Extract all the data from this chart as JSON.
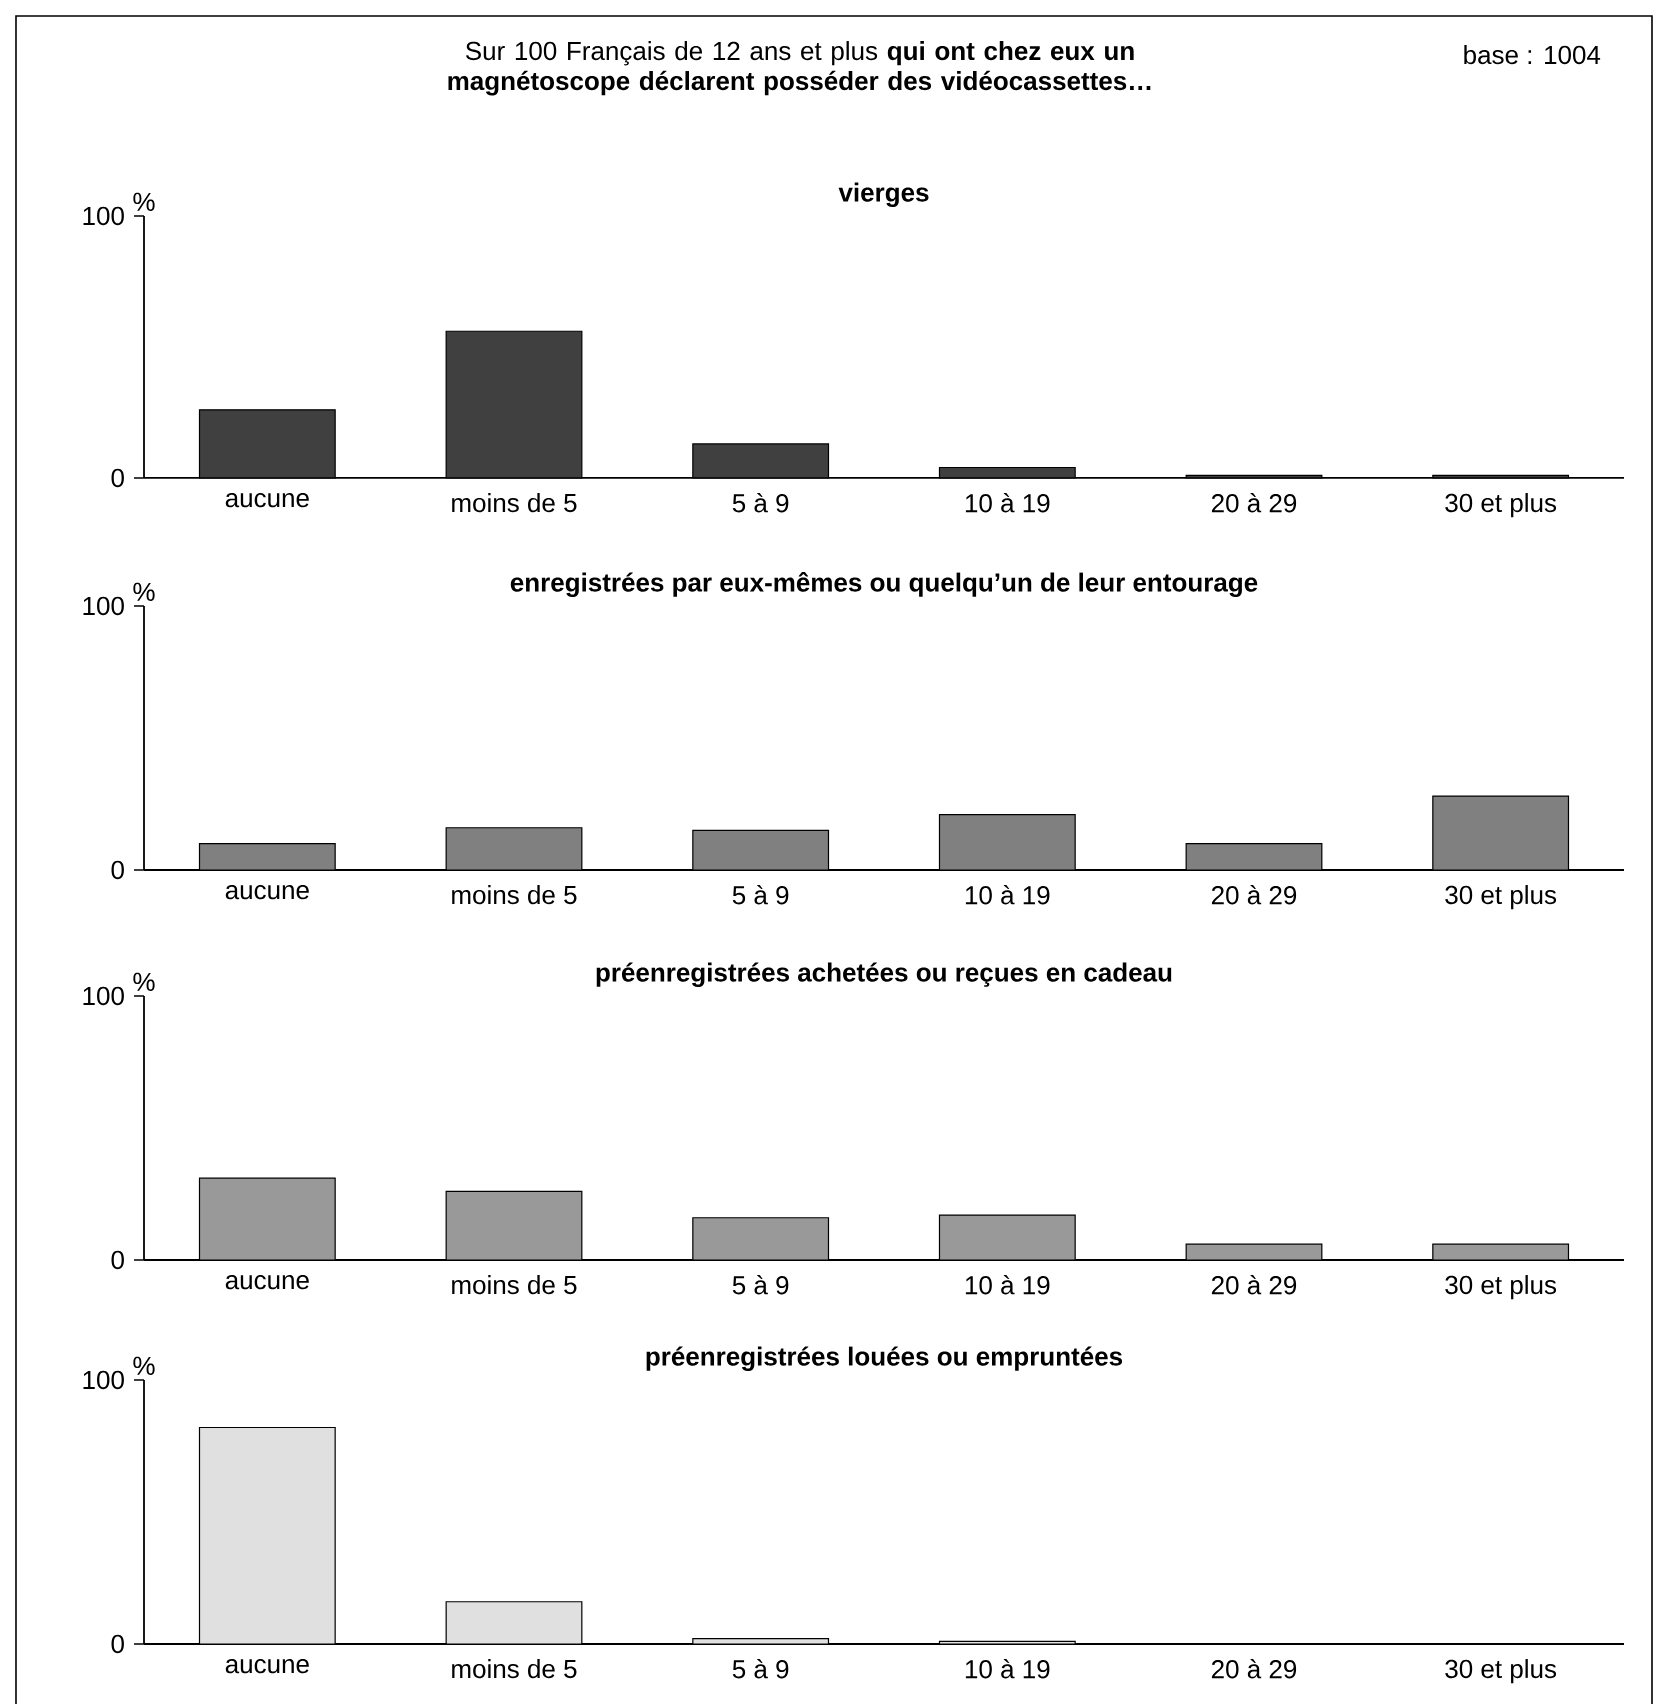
{
  "chart_data": [
    {
      "type": "bar",
      "title": "Sur 100 Français de 12 ans et plus **qui ont chez eux un magnétoscope déclarent posséder des vidéocassettes…**",
      "subtitle": "vierges",
      "annotations": [
        "base : 1004"
      ],
      "ylabel": "%",
      "categories": [
        "aucune",
        "moins de 5",
        "5 à 9",
        "10 à 19",
        "20 à 29",
        "30 et plus"
      ],
      "values": [
        26,
        56,
        13,
        4,
        1,
        1
      ],
      "color": "#404040",
      "ylim": [
        0,
        100
      ],
      "yticks": [
        0,
        100
      ]
    },
    {
      "type": "bar",
      "title": "enregistrées par eux-mêmes ou quelqu’un de leur entourage",
      "ylabel": "%",
      "categories": [
        "aucune",
        "moins de 5",
        "5 à 9",
        "10 à 19",
        "20 à 29",
        "30 et plus"
      ],
      "values": [
        10,
        16,
        15,
        21,
        10,
        28
      ],
      "color": "#808080",
      "ylim": [
        0,
        100
      ],
      "yticks": [
        0,
        100
      ]
    },
    {
      "type": "bar",
      "title": "préenregistrées achetées ou reçues en cadeau",
      "ylabel": "%",
      "categories": [
        "aucune",
        "moins de 5",
        "5 à 9",
        "10 à 19",
        "20 à 29",
        "30 et plus"
      ],
      "values": [
        31,
        26,
        16,
        17,
        6,
        6
      ],
      "color": "#999999",
      "ylim": [
        0,
        100
      ],
      "yticks": [
        0,
        100
      ]
    },
    {
      "type": "bar",
      "title": "préenregistrées louées ou empruntées",
      "ylabel": "%",
      "categories": [
        "aucune",
        "moins de 5",
        "5 à 9",
        "10 à 19",
        "20 à 29",
        "30 et plus"
      ],
      "values": [
        82,
        16,
        2,
        1,
        0,
        0
      ],
      "color": "#e0e0e0",
      "ylim": [
        0,
        100
      ],
      "yticks": [
        0,
        100
      ]
    }
  ]
}
